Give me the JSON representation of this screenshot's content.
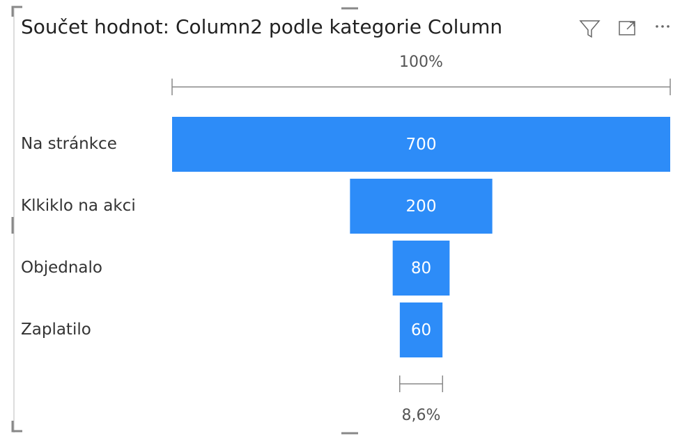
{
  "chart_data": {
    "type": "funnel",
    "title": "Součet hodnot: Column2 podle kategorie Column",
    "categories": [
      "Na stránkce",
      "Klkiklo na akci",
      "Objednalo",
      "Zaplatilo"
    ],
    "values": [
      700,
      200,
      80,
      60
    ],
    "color": "#2d8cf8",
    "percent_labels": {
      "top": {
        "value": 100,
        "label": "100%"
      },
      "bottom": {
        "value": 8.6,
        "label": "8,6%"
      }
    }
  }
}
